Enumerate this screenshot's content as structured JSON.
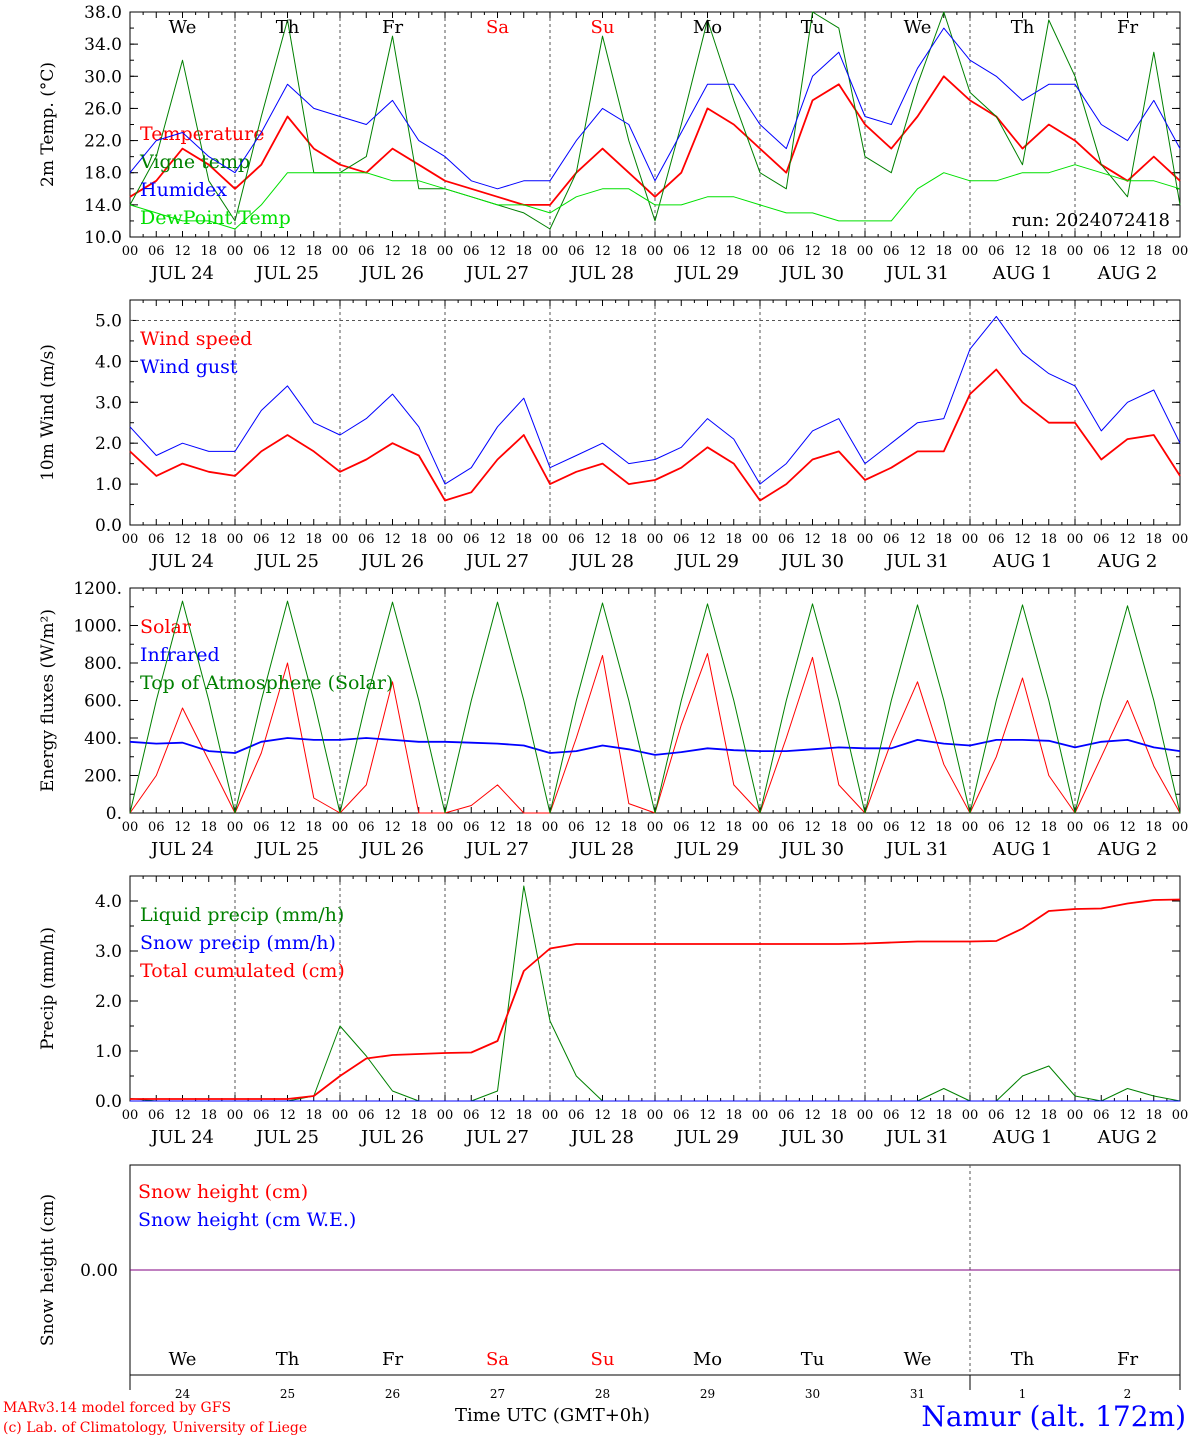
{
  "footer": {
    "model": "MARv3.14 model forced by GFS",
    "credit": "(c) Lab. of Climatology, University of Liege",
    "time_label": "Time UTC (GMT+0h)",
    "station": "Namur (alt. 172m)"
  },
  "colors": {
    "red": "#ff0000",
    "green": "#008000",
    "blue": "#0000ff",
    "lightgreen": "#00e000",
    "purple": "#800080"
  },
  "axis": {
    "hour_ticks": [
      "00",
      "06",
      "12",
      "18"
    ],
    "date_labels": [
      "JUL 24",
      "JUL 25",
      "JUL 26",
      "JUL 27",
      "JUL 28",
      "JUL 29",
      "JUL 30",
      "JUL 31",
      "AUG  1",
      "AUG  2"
    ],
    "weekdays": [
      "We",
      "Th",
      "Fr",
      "Sa",
      "Su",
      "Mo",
      "Tu",
      "We",
      "Th",
      "Fr"
    ],
    "weekday_colors": [
      "#000000",
      "#000000",
      "#000000",
      "#ff0000",
      "#ff0000",
      "#000000",
      "#000000",
      "#000000",
      "#000000",
      "#000000"
    ],
    "day_numbers": [
      "24",
      "25",
      "26",
      "27",
      "28",
      "29",
      "30",
      "31",
      "1",
      "2"
    ]
  },
  "chart_data": [
    {
      "type": "line",
      "panel": "temperature",
      "ylabel": "2m Temp. (°C)",
      "ylim": [
        10,
        38
      ],
      "yticks": [
        "10.0",
        "14.0",
        "18.0",
        "22.0",
        "26.0",
        "30.0",
        "34.0",
        "38.0"
      ],
      "run_label": "run: 2024072418",
      "x_hours": [
        0,
        6,
        12,
        18,
        24,
        30,
        36,
        42,
        48,
        54,
        60,
        66,
        72,
        78,
        84,
        90,
        96,
        102,
        108,
        114,
        120,
        126,
        132,
        138,
        144,
        150,
        156,
        162,
        168,
        174,
        180,
        186,
        192,
        198,
        204,
        210,
        216,
        222,
        228,
        234,
        240
      ],
      "series": [
        {
          "name": "Temperature",
          "color": "#ff0000",
          "values": [
            15,
            17,
            21,
            19,
            16,
            19,
            25,
            21,
            19,
            18,
            21,
            19,
            17,
            16,
            15,
            14,
            14,
            18,
            21,
            18,
            15,
            18,
            26,
            24,
            21,
            18,
            27,
            29,
            24,
            21,
            25,
            30,
            27,
            25,
            21,
            24,
            22,
            19,
            17,
            20,
            17
          ]
        },
        {
          "name": "Vigne temp",
          "color": "#008000",
          "values": [
            14,
            20,
            32,
            17,
            12,
            25,
            37,
            18,
            18,
            20,
            35,
            16,
            16,
            15,
            14,
            13,
            11,
            18,
            35,
            22,
            12,
            24,
            37,
            27,
            18,
            16,
            38,
            36,
            20,
            18,
            29,
            38,
            28,
            25,
            19,
            37,
            30,
            19,
            15,
            33,
            14
          ]
        },
        {
          "name": "Humidex",
          "color": "#0000ff",
          "values": [
            18,
            22,
            23,
            20,
            18,
            23,
            29,
            26,
            25,
            24,
            27,
            22,
            20,
            17,
            16,
            17,
            17,
            22,
            26,
            24,
            17,
            23,
            29,
            29,
            24,
            21,
            30,
            33,
            25,
            24,
            31,
            36,
            32,
            30,
            27,
            29,
            29,
            24,
            22,
            27,
            21
          ]
        },
        {
          "name": "DewPoint Temp",
          "color": "#00e000",
          "values": [
            14,
            13,
            12,
            12,
            11,
            14,
            18,
            18,
            18,
            18,
            17,
            17,
            16,
            15,
            14,
            14,
            13,
            15,
            16,
            16,
            14,
            14,
            15,
            15,
            14,
            13,
            13,
            12,
            12,
            12,
            16,
            18,
            17,
            17,
            18,
            18,
            19,
            18,
            17,
            17,
            16
          ]
        }
      ]
    },
    {
      "type": "line",
      "panel": "wind",
      "ylabel": "10m Wind (m/s)",
      "ylim": [
        0,
        5.5
      ],
      "yticks": [
        "0.0",
        "1.0",
        "2.0",
        "3.0",
        "4.0",
        "5.0"
      ],
      "x_hours": [
        0,
        6,
        12,
        18,
        24,
        30,
        36,
        42,
        48,
        54,
        60,
        66,
        72,
        78,
        84,
        90,
        96,
        102,
        108,
        114,
        120,
        126,
        132,
        138,
        144,
        150,
        156,
        162,
        168,
        174,
        180,
        186,
        192,
        198,
        204,
        210,
        216,
        222,
        228,
        234,
        240
      ],
      "series": [
        {
          "name": "Wind speed",
          "color": "#ff0000",
          "values": [
            1.8,
            1.2,
            1.5,
            1.3,
            1.2,
            1.8,
            2.2,
            1.8,
            1.3,
            1.6,
            2.0,
            1.7,
            0.6,
            0.8,
            1.6,
            2.2,
            1.0,
            1.3,
            1.5,
            1.0,
            1.1,
            1.4,
            1.9,
            1.5,
            0.6,
            1.0,
            1.6,
            1.8,
            1.1,
            1.4,
            1.8,
            1.8,
            3.2,
            3.8,
            3.0,
            2.5,
            2.5,
            1.6,
            2.1,
            2.2,
            1.2
          ]
        },
        {
          "name": "Wind gust",
          "color": "#0000ff",
          "values": [
            2.4,
            1.7,
            2.0,
            1.8,
            1.8,
            2.8,
            3.4,
            2.5,
            2.2,
            2.6,
            3.2,
            2.4,
            1.0,
            1.4,
            2.4,
            3.1,
            1.4,
            1.7,
            2.0,
            1.5,
            1.6,
            1.9,
            2.6,
            2.1,
            1.0,
            1.5,
            2.3,
            2.6,
            1.5,
            2.0,
            2.5,
            2.6,
            4.3,
            5.1,
            4.2,
            3.7,
            3.4,
            2.3,
            3.0,
            3.3,
            2.0
          ]
        }
      ]
    },
    {
      "type": "line",
      "panel": "energy",
      "ylabel": "Energy fluxes (W/m²)",
      "ylim": [
        0,
        1200
      ],
      "yticks": [
        "0.",
        "200.",
        "400.",
        "600.",
        "800.",
        "1000.",
        "1200."
      ],
      "x_hours": [
        0,
        6,
        12,
        18,
        24,
        30,
        36,
        42,
        48,
        54,
        60,
        66,
        72,
        78,
        84,
        90,
        96,
        102,
        108,
        114,
        120,
        126,
        132,
        138,
        144,
        150,
        156,
        162,
        168,
        174,
        180,
        186,
        192,
        198,
        204,
        210,
        216,
        222,
        228,
        234,
        240
      ],
      "series": [
        {
          "name": "Solar",
          "color": "#ff0000",
          "values": [
            0,
            200,
            560,
            280,
            0,
            320,
            800,
            80,
            0,
            150,
            700,
            0,
            0,
            40,
            150,
            0,
            0,
            400,
            840,
            50,
            0,
            470,
            850,
            150,
            0,
            400,
            830,
            150,
            0,
            380,
            700,
            260,
            0,
            300,
            720,
            200,
            0,
            300,
            600,
            250,
            0
          ]
        },
        {
          "name": "Infrared",
          "color": "#0000ff",
          "values": [
            380,
            370,
            375,
            330,
            320,
            380,
            400,
            390,
            390,
            400,
            390,
            380,
            380,
            375,
            370,
            360,
            320,
            330,
            360,
            340,
            310,
            325,
            345,
            335,
            330,
            330,
            340,
            350,
            345,
            345,
            390,
            370,
            360,
            390,
            390,
            385,
            350,
            380,
            390,
            350,
            330
          ]
        },
        {
          "name": "Top of Atmosphere (Solar)",
          "color": "#008000",
          "values": [
            0,
            600,
            1130,
            600,
            0,
            600,
            1130,
            600,
            0,
            600,
            1125,
            600,
            0,
            600,
            1125,
            600,
            0,
            600,
            1120,
            600,
            0,
            600,
            1115,
            600,
            0,
            600,
            1115,
            600,
            0,
            600,
            1110,
            600,
            0,
            600,
            1110,
            600,
            0,
            600,
            1105,
            600,
            0
          ]
        }
      ]
    },
    {
      "type": "line",
      "panel": "precip",
      "ylabel": "Precip (mm/h)",
      "ylim": [
        0,
        4.5
      ],
      "yticks": [
        "0.0",
        "1.0",
        "2.0",
        "3.0",
        "4.0"
      ],
      "x_hours": [
        0,
        6,
        12,
        18,
        24,
        30,
        36,
        42,
        48,
        54,
        60,
        66,
        72,
        78,
        84,
        90,
        96,
        102,
        108,
        114,
        120,
        126,
        132,
        138,
        144,
        150,
        156,
        162,
        168,
        174,
        180,
        186,
        192,
        198,
        204,
        210,
        216,
        222,
        228,
        234,
        240
      ],
      "series": [
        {
          "name": "Liquid precip (mm/h)",
          "color": "#008000",
          "values": [
            0.05,
            0,
            0,
            0,
            0,
            0,
            0,
            0.1,
            1.5,
            0.9,
            0.2,
            0,
            0,
            0,
            0.2,
            4.3,
            1.6,
            0.5,
            0,
            0,
            0,
            0,
            0,
            0,
            0,
            0,
            0,
            0,
            0,
            0,
            0,
            0.25,
            0,
            0,
            0.5,
            0.7,
            0.1,
            0,
            0.25,
            0.1,
            0
          ]
        },
        {
          "name": "Snow precip (mm/h)",
          "color": "#0000ff",
          "values": [
            0,
            0,
            0,
            0,
            0,
            0,
            0,
            0,
            0,
            0,
            0,
            0,
            0,
            0,
            0,
            0,
            0,
            0,
            0,
            0,
            0,
            0,
            0,
            0,
            0,
            0,
            0,
            0,
            0,
            0,
            0,
            0,
            0,
            0,
            0,
            0,
            0,
            0,
            0,
            0,
            0
          ]
        },
        {
          "name": "Total cumulated (cm)",
          "color": "#ff0000",
          "values": [
            0.04,
            0.04,
            0.04,
            0.04,
            0.04,
            0.04,
            0.04,
            0.1,
            0.5,
            0.85,
            0.92,
            0.94,
            0.96,
            0.97,
            1.2,
            2.6,
            3.05,
            3.14,
            3.14,
            3.14,
            3.14,
            3.14,
            3.14,
            3.14,
            3.14,
            3.14,
            3.14,
            3.14,
            3.15,
            3.17,
            3.19,
            3.19,
            3.19,
            3.2,
            3.45,
            3.8,
            3.84,
            3.85,
            3.95,
            4.02,
            4.03
          ]
        }
      ]
    },
    {
      "type": "line",
      "panel": "snow",
      "ylabel": "Snow height (cm)",
      "yticks": [
        "0.00"
      ],
      "series": [
        {
          "name": "Snow height (cm)",
          "color": "#ff0000",
          "values": [
            0,
            0
          ]
        },
        {
          "name": "Snow height (cm W.E.)",
          "color": "#0000ff",
          "values": [
            0,
            0
          ]
        }
      ]
    }
  ]
}
